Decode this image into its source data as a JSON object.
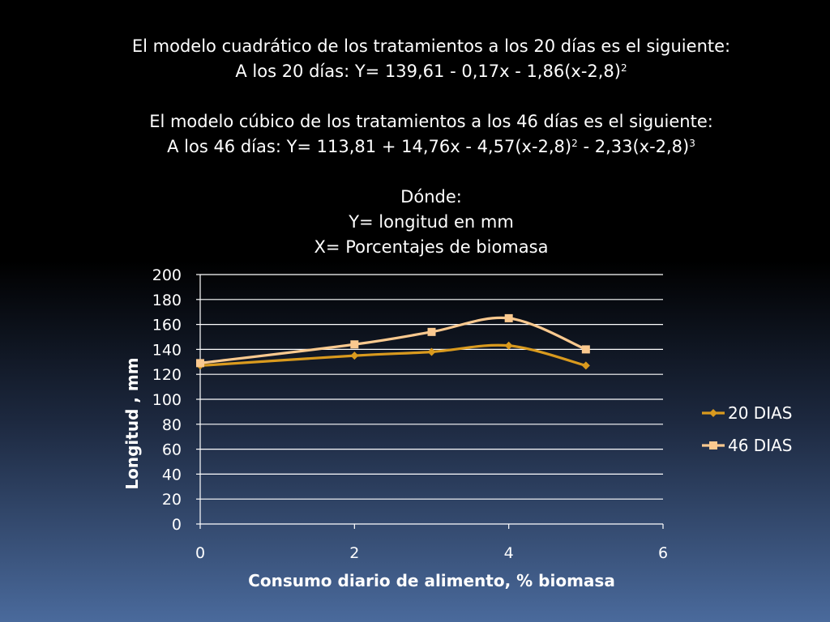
{
  "slide": {
    "lines": [
      "El modelo cuadrático de los tratamientos a los 20 días es el siguiente:",
      "A los 20 días: Y= 139,61 - 0,17x - 1,86(x-2,8)",
      "El modelo cúbico de los tratamientos a los 46 días es el siguiente:",
      "A los 46 días: Y= 113,81 + 14,76x - 4,57(x-2,8)",
      " - 2,33(x-2,8)",
      "Dónde:",
      "Y= longitud en mm",
      "X= Porcentajes de biomasa"
    ],
    "exponents": [
      "2",
      "2",
      "3"
    ]
  },
  "chart_data": {
    "type": "line",
    "title": "",
    "xlabel": "Consumo diario de alimento, % biomasa",
    "ylabel": "Longitud , mm",
    "xlim": [
      0,
      6
    ],
    "ylim": [
      0,
      200
    ],
    "x_ticks": [
      0,
      2,
      4,
      6
    ],
    "y_ticks": [
      0,
      20,
      40,
      60,
      80,
      100,
      120,
      140,
      160,
      180,
      200
    ],
    "grid": true,
    "legend": "right",
    "series": [
      {
        "name": "20 DIAS",
        "color": "#d99a1e",
        "marker": "diamond",
        "x": [
          0,
          2,
          3,
          4,
          5
        ],
        "y": [
          127,
          135,
          138,
          143,
          127
        ]
      },
      {
        "name": "46 DIAS",
        "color": "#fac98f",
        "marker": "square",
        "x": [
          0,
          2,
          3,
          4,
          5
        ],
        "y": [
          129,
          144,
          154,
          165,
          140
        ]
      }
    ]
  }
}
